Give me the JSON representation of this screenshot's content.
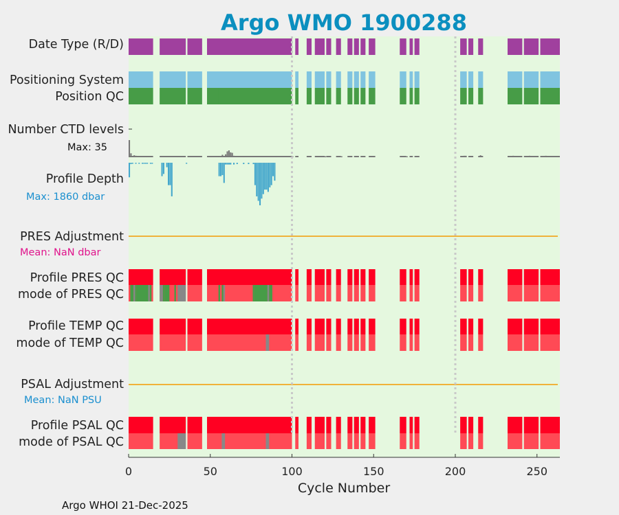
{
  "chart_data": {
    "type": "bar",
    "title": "Argo WMO 1900288",
    "xlabel": "Cycle Number",
    "xlim": [
      0,
      264
    ],
    "xticks": [
      0,
      50,
      100,
      150,
      200,
      250
    ],
    "vertical_markers": [
      100,
      200
    ],
    "footer": "Argo WHOI 21-Dec-2025",
    "background_color": "#e5f8df",
    "colors": {
      "D": "#a0409e",
      "ARGOS": "#80c4e0",
      "QC1": "#479c47",
      "QC4": "#ff0022",
      "QC4_mode": "#ff4a55",
      "QC3": "#888888",
      "levels": "#777777",
      "depth": "#44a7cc",
      "adjust_line": "#f0b23a",
      "title": "#0b8fbf",
      "pres_mean": "#e0148c",
      "psal_mean": "#1a8fcf"
    },
    "cycle_segments": [
      [
        0,
        15
      ],
      [
        19,
        35
      ],
      [
        36,
        45
      ],
      [
        48,
        57
      ],
      [
        55,
        100
      ],
      [
        102,
        104
      ],
      [
        109,
        112
      ],
      [
        114,
        120
      ],
      [
        121,
        124
      ],
      [
        127,
        130
      ],
      [
        134,
        137
      ],
      [
        138,
        141
      ],
      [
        142,
        145
      ],
      [
        147,
        151
      ],
      [
        166,
        170
      ],
      [
        172,
        174
      ],
      [
        175,
        178
      ],
      [
        203,
        207
      ],
      [
        208,
        211
      ],
      [
        214,
        217
      ],
      [
        232,
        241
      ],
      [
        242,
        251
      ],
      [
        252,
        264
      ]
    ],
    "rows": [
      {
        "label": "Date Type (R/D)",
        "kind": "band",
        "value": "D"
      },
      {
        "label": "Positioning System",
        "kind": "band",
        "value": "ARGOS"
      },
      {
        "label": "Position QC",
        "kind": "band",
        "value": "1"
      },
      {
        "label": "Number CTD levels",
        "kind": "bars",
        "max_label": "Max: 35",
        "points": [
          [
            0,
            35
          ],
          [
            1,
            8
          ],
          [
            3,
            4
          ],
          [
            4,
            3
          ],
          [
            10,
            2
          ],
          [
            20,
            2
          ],
          [
            30,
            2
          ],
          [
            40,
            2
          ],
          [
            50,
            2
          ],
          [
            56,
            2
          ],
          [
            57,
            5
          ],
          [
            59,
            6
          ],
          [
            60,
            12
          ],
          [
            61,
            14
          ],
          [
            62,
            10
          ],
          [
            63,
            9
          ],
          [
            64,
            3
          ],
          [
            70,
            2
          ],
          [
            80,
            2
          ],
          [
            90,
            2
          ],
          [
            100,
            2
          ],
          [
            110,
            2
          ],
          [
            120,
            2
          ],
          [
            130,
            2
          ],
          [
            140,
            2
          ],
          [
            150,
            2
          ],
          [
            170,
            2
          ],
          [
            205,
            3
          ],
          [
            206,
            3
          ],
          [
            210,
            2
          ],
          [
            215,
            4
          ],
          [
            235,
            3
          ],
          [
            245,
            3
          ],
          [
            255,
            3
          ]
        ]
      },
      {
        "label": "Profile Depth",
        "kind": "depth",
        "max_label": "Max: 1860 dbar",
        "points": [
          [
            0,
            650
          ],
          [
            1,
            60
          ],
          [
            2,
            40
          ],
          [
            4,
            40
          ],
          [
            6,
            40
          ],
          [
            8,
            40
          ],
          [
            9,
            40
          ],
          [
            10,
            40
          ],
          [
            11,
            40
          ],
          [
            13,
            40
          ],
          [
            14,
            40
          ],
          [
            20,
            600
          ],
          [
            21,
            500
          ],
          [
            23,
            200
          ],
          [
            24,
            1000
          ],
          [
            25,
            1000
          ],
          [
            26,
            1500
          ],
          [
            35,
            40
          ],
          [
            55,
            600
          ],
          [
            56,
            600
          ],
          [
            57,
            550
          ],
          [
            58,
            900
          ],
          [
            59,
            80
          ],
          [
            60,
            80
          ],
          [
            61,
            80
          ],
          [
            62,
            80
          ],
          [
            64,
            80
          ],
          [
            66,
            60
          ],
          [
            70,
            60
          ],
          [
            73,
            60
          ],
          [
            76,
            60
          ],
          [
            77,
            1000
          ],
          [
            78,
            1500
          ],
          [
            79,
            1700
          ],
          [
            80,
            1900
          ],
          [
            81,
            1600
          ],
          [
            82,
            1400
          ],
          [
            83,
            1200
          ],
          [
            84,
            1200
          ],
          [
            85,
            1300
          ],
          [
            86,
            1100
          ],
          [
            87,
            1000
          ],
          [
            88,
            600
          ],
          [
            89,
            800
          ]
        ]
      },
      {
        "label": "PRES Adjustment",
        "kind": "line",
        "mean_label": "Mean:  NaN dbar"
      },
      {
        "label": "Profile PRES QC",
        "kind": "band",
        "value": "4"
      },
      {
        "label": "mode of PRES QC",
        "kind": "mode",
        "value": "4",
        "overrides": [
          [
            1,
            3,
            "QC1"
          ],
          [
            3,
            4,
            "QC3"
          ],
          [
            4,
            5,
            "QC1"
          ],
          [
            5,
            12,
            "QC1"
          ],
          [
            12,
            13,
            "QC3"
          ],
          [
            13,
            14,
            "QC1"
          ],
          [
            19,
            21,
            "QC3"
          ],
          [
            21,
            22,
            "QC1"
          ],
          [
            22,
            24,
            "QC1"
          ],
          [
            24,
            25,
            "QC1"
          ],
          [
            28,
            29,
            "QC1"
          ],
          [
            30,
            32,
            "QC3"
          ],
          [
            32,
            35,
            "QC3"
          ],
          [
            55,
            56,
            "QC1"
          ],
          [
            57,
            58,
            "QC1"
          ],
          [
            58,
            59,
            "QC3"
          ],
          [
            76,
            77,
            "QC1"
          ],
          [
            77,
            85,
            "QC1"
          ],
          [
            85,
            86,
            "QC3"
          ],
          [
            86,
            88,
            "QC1"
          ]
        ]
      },
      {
        "label": "Profile TEMP QC",
        "kind": "band",
        "value": "4"
      },
      {
        "label": "mode of TEMP QC",
        "kind": "mode",
        "value": "4",
        "overrides": [
          [
            84,
            86,
            "QC3"
          ]
        ]
      },
      {
        "label": "PSAL Adjustment",
        "kind": "line",
        "mean_label": "Mean:  NaN PSU"
      },
      {
        "label": "Profile PSAL QC",
        "kind": "band",
        "value": "4"
      },
      {
        "label": "mode of PSAL QC",
        "kind": "mode",
        "value": "4",
        "overrides": [
          [
            30,
            35,
            "QC3"
          ],
          [
            57,
            59,
            "QC3"
          ],
          [
            84,
            86,
            "QC3"
          ]
        ]
      }
    ]
  }
}
